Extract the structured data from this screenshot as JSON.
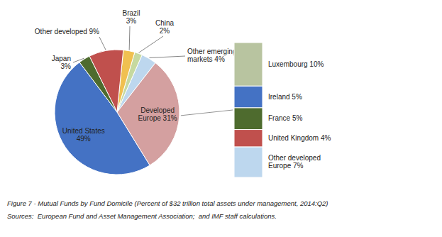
{
  "chart_data": [
    {
      "type": "pie",
      "title": "Figure 7 - Mutual Funds by Fund Domicile (Percent of $32 trillion total assets under management, 2014:Q2)",
      "annotations": [
        "Sources:  European Fund and Asset Management Association;  and IMF staff calculations."
      ],
      "values": [
        49,
        31,
        4,
        2,
        3,
        9,
        3
      ],
      "value_labels": [
        "United States\n49%",
        "Developed\nEurope 31%",
        "Other emerging\nmarkets 4%",
        "China\n2%",
        "Brazil\n3%",
        "Other developed 9%",
        "Japan\n3%"
      ],
      "colors": [
        "#4472C4",
        "#D4A0A0",
        "#BDD7EE",
        "#C6D9A0",
        "#F0C050",
        "#C0504D",
        "#4E6B2E"
      ],
      "data_labels": true
    },
    {
      "type": "bar",
      "stacked": true,
      "categories": [
        null
      ],
      "ylim": [
        0,
        31
      ],
      "tick_labels": false,
      "series": [
        {
          "name": "Luxembourg 10%",
          "color": "#B8C4A0",
          "values": [
            10
          ]
        },
        {
          "name": "Ireland 5%",
          "color": "#4472C4",
          "values": [
            5
          ]
        },
        {
          "name": "France 5%",
          "color": "#4E6B2E",
          "values": [
            5
          ]
        },
        {
          "name": "United Kingdom 4%",
          "color": "#C0504D",
          "values": [
            4
          ]
        },
        {
          "name": "Other developed\nEurope 7%",
          "color": "#BDD7EE",
          "values": [
            7
          ]
        }
      ]
    }
  ]
}
